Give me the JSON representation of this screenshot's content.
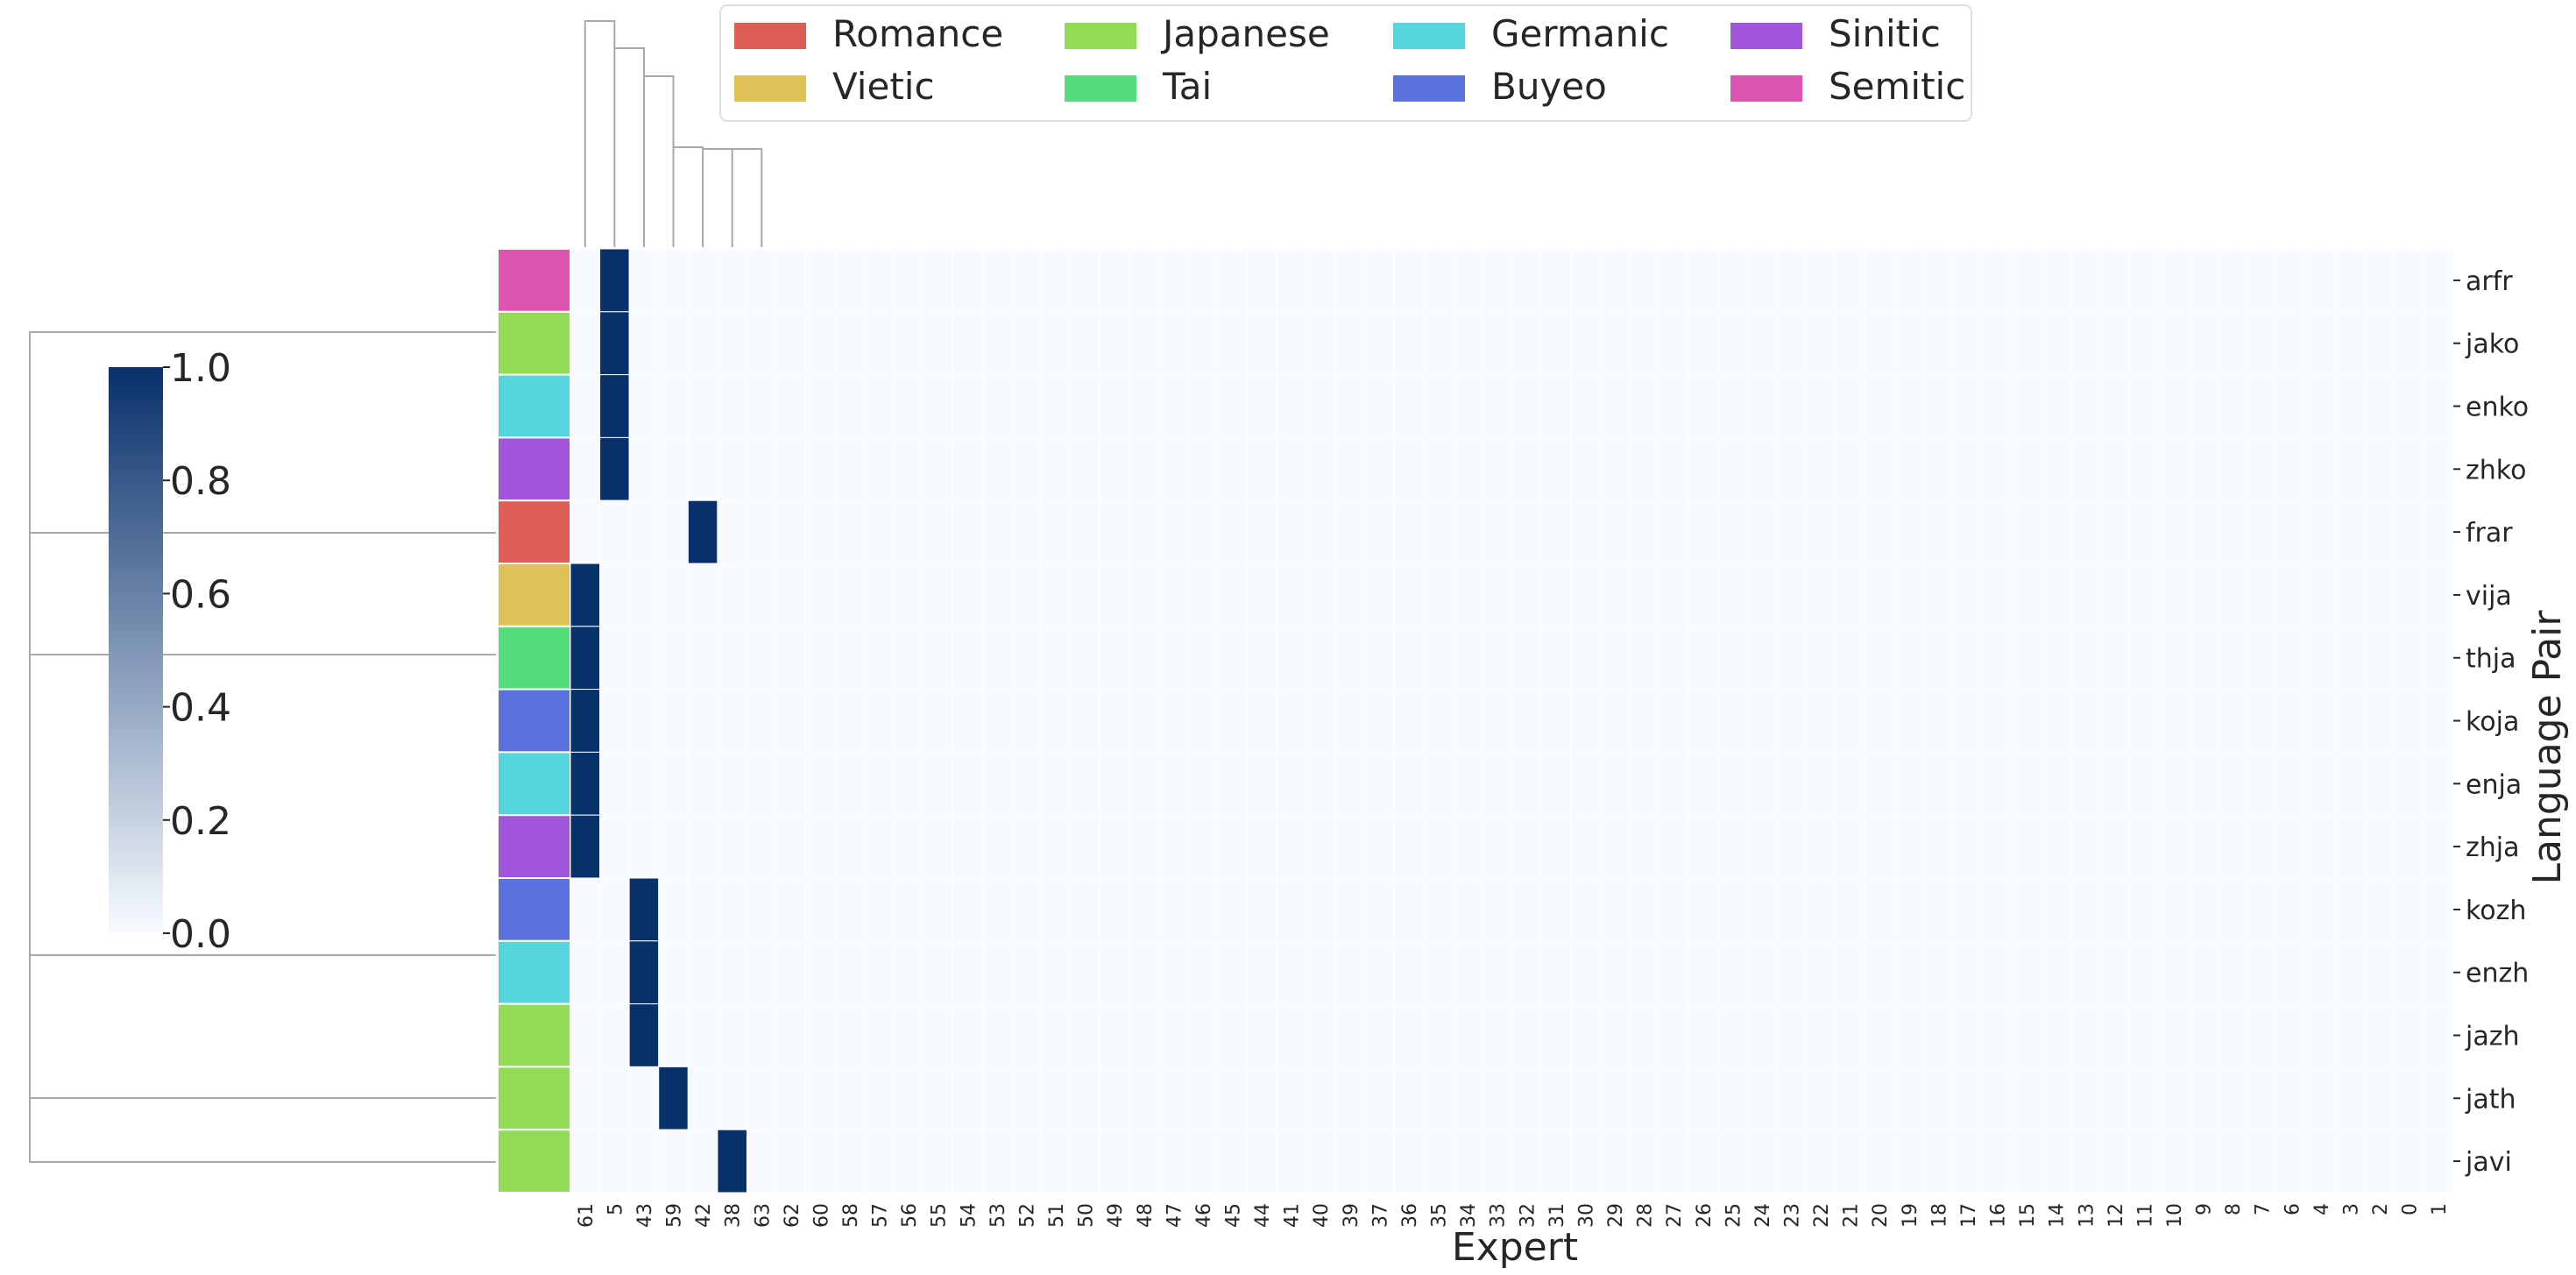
{
  "chart_data": {
    "type": "heatmap",
    "title": "",
    "xlabel": "Expert",
    "ylabel": "Language Pair",
    "x_categories": [
      "61",
      "5",
      "43",
      "59",
      "42",
      "38",
      "63",
      "62",
      "60",
      "58",
      "57",
      "56",
      "55",
      "54",
      "53",
      "52",
      "51",
      "50",
      "49",
      "48",
      "47",
      "46",
      "45",
      "44",
      "41",
      "40",
      "39",
      "37",
      "36",
      "35",
      "34",
      "33",
      "32",
      "31",
      "30",
      "29",
      "28",
      "27",
      "26",
      "25",
      "24",
      "23",
      "22",
      "21",
      "20",
      "19",
      "18",
      "17",
      "16",
      "15",
      "14",
      "13",
      "12",
      "11",
      "10",
      "9",
      "8",
      "7",
      "6",
      "4",
      "3",
      "2",
      "0",
      "1"
    ],
    "y_categories": [
      "arfr",
      "jako",
      "enko",
      "zhko",
      "frar",
      "vija",
      "thja",
      "koja",
      "enja",
      "zhja",
      "kozh",
      "enzh",
      "jazh",
      "jath",
      "javi"
    ],
    "row_groups": [
      "Semitic",
      "Japanese",
      "Germanic",
      "Sinitic",
      "Romance",
      "Vietic",
      "Tai",
      "Buyeo",
      "Germanic",
      "Sinitic",
      "Buyeo",
      "Germanic",
      "Japanese",
      "Japanese",
      "Japanese"
    ],
    "value_range": [
      0,
      1
    ],
    "default_value": 0,
    "high_cells": [
      {
        "y": "arfr",
        "x": "5",
        "value": 1
      },
      {
        "y": "jako",
        "x": "5",
        "value": 1
      },
      {
        "y": "enko",
        "x": "5",
        "value": 1
      },
      {
        "y": "zhko",
        "x": "5",
        "value": 1
      },
      {
        "y": "frar",
        "x": "42",
        "value": 1
      },
      {
        "y": "vija",
        "x": "61",
        "value": 1
      },
      {
        "y": "thja",
        "x": "61",
        "value": 1
      },
      {
        "y": "koja",
        "x": "61",
        "value": 1
      },
      {
        "y": "enja",
        "x": "61",
        "value": 1
      },
      {
        "y": "zhja",
        "x": "61",
        "value": 1
      },
      {
        "y": "kozh",
        "x": "43",
        "value": 1
      },
      {
        "y": "enzh",
        "x": "43",
        "value": 1
      },
      {
        "y": "jazh",
        "x": "43",
        "value": 1
      },
      {
        "y": "jath",
        "x": "59",
        "value": 1
      },
      {
        "y": "javi",
        "x": "38",
        "value": 1
      }
    ],
    "colorbar": {
      "ticks": [
        "0.0",
        "0.2",
        "0.4",
        "0.6",
        "0.8",
        "1.0"
      ],
      "color_low": "#f7fbff",
      "color_high": "#08306b"
    },
    "legend": {
      "placement": "top",
      "entries": [
        {
          "name": "Romance",
          "color": "#dd5e55"
        },
        {
          "name": "Vietic",
          "color": "#dbc156"
        },
        {
          "name": "Japanese",
          "color": "#92dc55"
        },
        {
          "name": "Tai",
          "color": "#55dc7b"
        },
        {
          "name": "Germanic",
          "color": "#55d5dc"
        },
        {
          "name": "Buyeo",
          "color": "#5a72dc"
        },
        {
          "name": "Sinitic",
          "color": "#a055dc"
        },
        {
          "name": "Semitic",
          "color": "#dc55b1"
        }
      ]
    },
    "dendrograms": [
      "row",
      "column"
    ],
    "grid": false
  }
}
